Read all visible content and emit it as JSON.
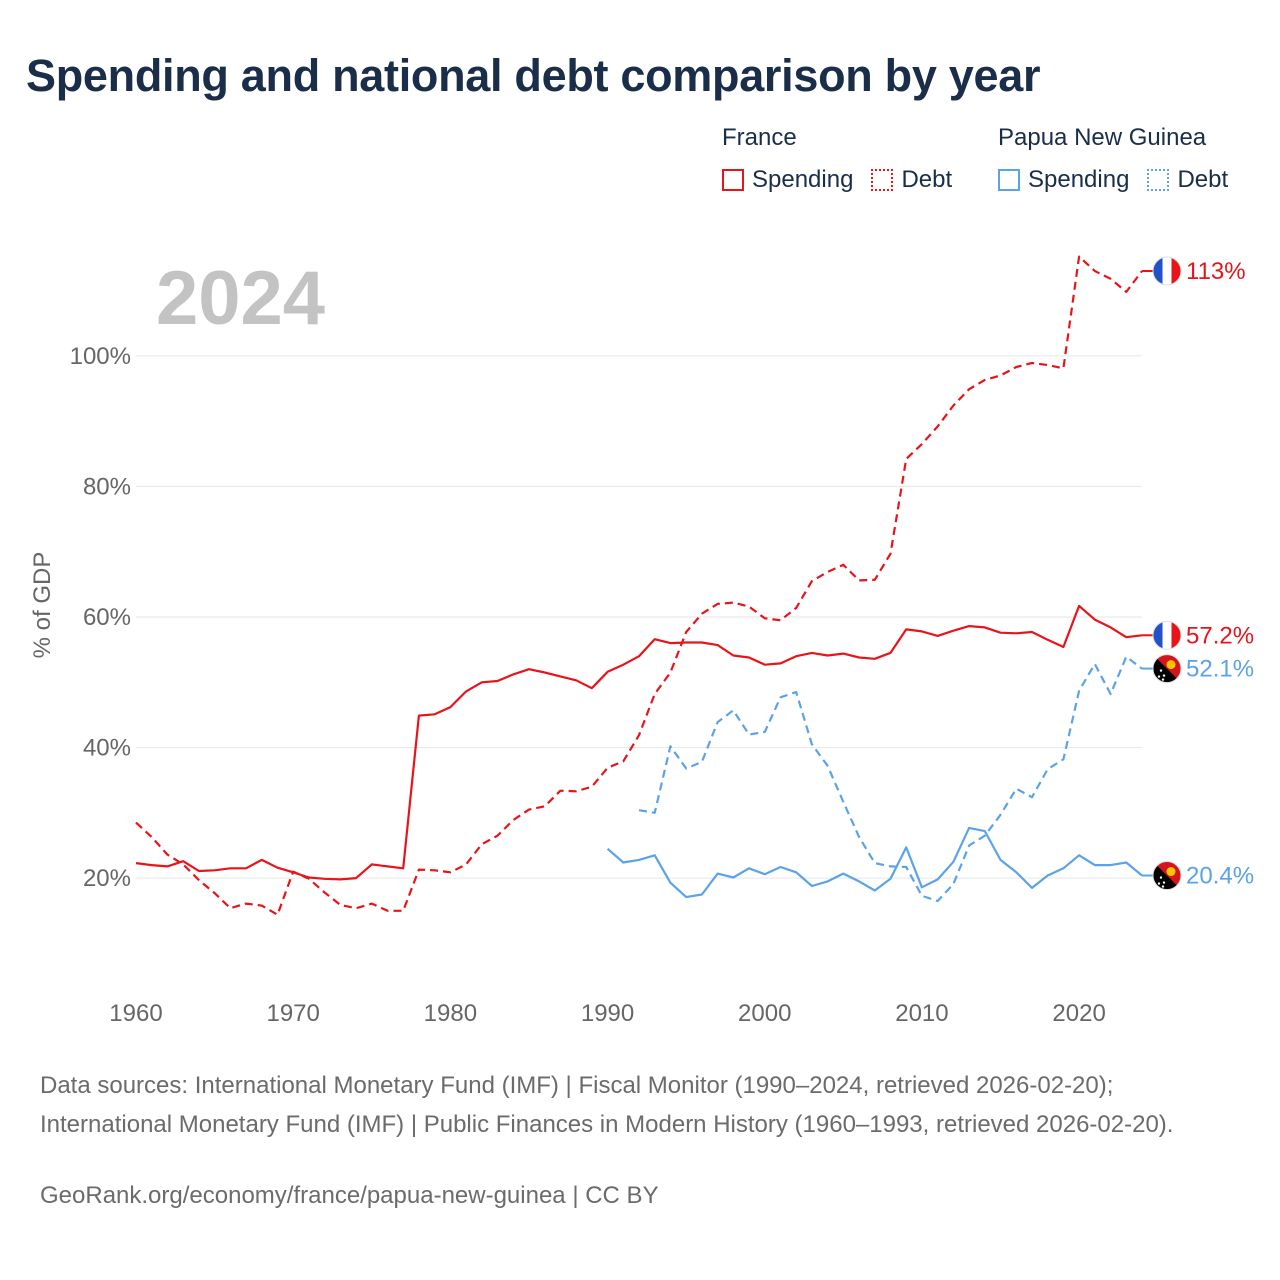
{
  "title": "Spending and national debt comparison by year",
  "legend": {
    "groups": [
      {
        "country": "France",
        "color": "#e8141a",
        "items": [
          {
            "label": "Spending",
            "style": "solid"
          },
          {
            "label": "Debt",
            "style": "dotted"
          }
        ]
      },
      {
        "country": "Papua New Guinea",
        "color": "#5ba3e6",
        "items": [
          {
            "label": "Spending",
            "style": "solid"
          },
          {
            "label": "Debt",
            "style": "dotted"
          }
        ]
      }
    ]
  },
  "footer": {
    "sources": "Data sources: International Monetary Fund (IMF) | Fiscal Monitor (1990–2024, retrieved 2026-02-20); International Monetary Fund (IMF) | Public Finances in Modern History (1960–1993, retrieved 2026-02-20).",
    "attribution": "GeoRank.org/economy/france/papua-new-guinea | CC BY"
  },
  "chart_data": {
    "type": "line",
    "title": "Spending and national debt comparison by year",
    "year_label": "2024",
    "xlabel": "",
    "ylabel": "% of GDP",
    "xlim": [
      1960,
      2024
    ],
    "ylim": [
      7,
      113
    ],
    "x_ticks": [
      1960,
      1970,
      1980,
      1990,
      2000,
      2010,
      2020
    ],
    "y_ticks": [
      20,
      40,
      60,
      80,
      100
    ],
    "y_tick_labels": [
      "20%",
      "40%",
      "60%",
      "80%",
      "100%"
    ],
    "grid": true,
    "series": [
      {
        "name": "France Spending",
        "country": "France",
        "metric": "Spending",
        "color": "#e8141a",
        "dash": "solid",
        "end_label": "57.2%",
        "flag": "france-flag",
        "x": [
          1960,
          1961,
          1962,
          1963,
          1964,
          1965,
          1966,
          1967,
          1968,
          1969,
          1970,
          1971,
          1972,
          1973,
          1974,
          1975,
          1976,
          1977,
          1978,
          1979,
          1980,
          1981,
          1982,
          1983,
          1984,
          1985,
          1986,
          1987,
          1988,
          1989,
          1990,
          1991,
          1992,
          1993,
          1994,
          1995,
          1996,
          1997,
          1998,
          1999,
          2000,
          2001,
          2002,
          2003,
          2004,
          2005,
          2006,
          2007,
          2008,
          2009,
          2010,
          2011,
          2012,
          2013,
          2014,
          2015,
          2016,
          2017,
          2018,
          2019,
          2020,
          2021,
          2022,
          2023,
          2024
        ],
        "values": [
          22.3,
          22.0,
          21.8,
          22.6,
          21.1,
          21.2,
          21.5,
          21.5,
          22.8,
          21.6,
          20.9,
          20.1,
          19.9,
          19.8,
          20.0,
          22.1,
          21.8,
          21.5,
          44.9,
          45.1,
          46.2,
          48.6,
          50.0,
          50.2,
          51.2,
          52.0,
          51.5,
          50.9,
          50.3,
          49.1,
          51.6,
          52.7,
          54.0,
          56.6,
          56.0,
          56.1,
          56.1,
          55.7,
          54.1,
          53.8,
          52.7,
          52.9,
          54.0,
          54.5,
          54.1,
          54.4,
          53.8,
          53.6,
          54.5,
          58.1,
          57.8,
          57.1,
          57.9,
          58.6,
          58.4,
          57.6,
          57.5,
          57.7,
          56.5,
          55.4,
          61.7,
          59.6,
          58.4,
          56.9,
          57.2
        ]
      },
      {
        "name": "France Debt",
        "country": "France",
        "metric": "Debt",
        "color": "#e8141a",
        "dash": "dashed",
        "end_label": "113%",
        "flag": "france-flag",
        "x": [
          1960,
          1961,
          1962,
          1963,
          1964,
          1965,
          1966,
          1967,
          1968,
          1969,
          1970,
          1971,
          1972,
          1973,
          1974,
          1975,
          1976,
          1977,
          1978,
          1979,
          1980,
          1981,
          1982,
          1983,
          1984,
          1985,
          1986,
          1987,
          1988,
          1989,
          1990,
          1991,
          1992,
          1993,
          1994,
          1995,
          1996,
          1997,
          1998,
          1999,
          2000,
          2001,
          2002,
          2003,
          2004,
          2005,
          2006,
          2007,
          2008,
          2009,
          2010,
          2011,
          2012,
          2013,
          2014,
          2015,
          2016,
          2017,
          2018,
          2019,
          2020,
          2021,
          2022,
          2023,
          2024
        ],
        "values": [
          28.5,
          26.3,
          23.6,
          22.1,
          19.7,
          17.7,
          15.4,
          16.1,
          15.8,
          14.4,
          21.0,
          19.9,
          17.8,
          15.9,
          15.4,
          16.1,
          15.0,
          15.0,
          21.3,
          21.2,
          20.9,
          22.1,
          25.2,
          26.5,
          28.9,
          30.5,
          31.0,
          33.4,
          33.3,
          34.0,
          36.9,
          37.9,
          41.9,
          48.2,
          51.5,
          57.7,
          60.5,
          62.0,
          62.2,
          61.6,
          59.8,
          59.5,
          61.4,
          65.5,
          66.9,
          68.0,
          65.6,
          65.7,
          69.7,
          84.2,
          86.5,
          89.2,
          92.4,
          94.9,
          96.3,
          97.0,
          98.3,
          98.9,
          98.6,
          98.1,
          115.2,
          113.0,
          111.8,
          109.8,
          113.0
        ]
      },
      {
        "name": "Papua New Guinea Spending",
        "country": "Papua New Guinea",
        "metric": "Spending",
        "color": "#5ba3e6",
        "dash": "solid",
        "end_label": "20.4%",
        "flag": "png-flag",
        "x": [
          1990,
          1991,
          1992,
          1993,
          1994,
          1995,
          1996,
          1997,
          1998,
          1999,
          2000,
          2001,
          2002,
          2003,
          2004,
          2005,
          2006,
          2007,
          2008,
          2009,
          2010,
          2011,
          2012,
          2013,
          2014,
          2015,
          2016,
          2017,
          2018,
          2019,
          2020,
          2021,
          2022,
          2023,
          2024
        ],
        "values": [
          24.5,
          22.4,
          22.8,
          23.5,
          19.3,
          17.1,
          17.5,
          20.7,
          20.1,
          21.5,
          20.6,
          21.7,
          20.9,
          18.8,
          19.5,
          20.7,
          19.5,
          18.1,
          19.9,
          24.7,
          18.6,
          19.8,
          22.5,
          27.7,
          27.2,
          22.8,
          20.9,
          18.5,
          20.4,
          21.5,
          23.5,
          22.0,
          22.0,
          22.4,
          20.4
        ]
      },
      {
        "name": "Papua New Guinea Debt",
        "country": "Papua New Guinea",
        "metric": "Debt",
        "color": "#5ba3e6",
        "dash": "dashed",
        "end_label": "52.1%",
        "flag": "png-flag",
        "x": [
          1992,
          1993,
          1994,
          1995,
          1996,
          1997,
          1998,
          1999,
          2000,
          2001,
          2002,
          2003,
          2004,
          2005,
          2006,
          2007,
          2008,
          2009,
          2010,
          2011,
          2012,
          2013,
          2014,
          2015,
          2016,
          2017,
          2018,
          2019,
          2020,
          2021,
          2022,
          2023,
          2024
        ],
        "values": [
          30.4,
          30.0,
          40.2,
          36.8,
          37.8,
          43.9,
          45.7,
          42.0,
          42.4,
          47.7,
          48.5,
          40.5,
          37.2,
          31.7,
          26.3,
          22.3,
          21.8,
          21.7,
          17.3,
          16.5,
          19.1,
          25.0,
          26.5,
          29.7,
          33.7,
          32.4,
          36.7,
          38.2,
          48.7,
          52.8,
          48.2,
          53.9,
          52.1
        ]
      }
    ]
  }
}
